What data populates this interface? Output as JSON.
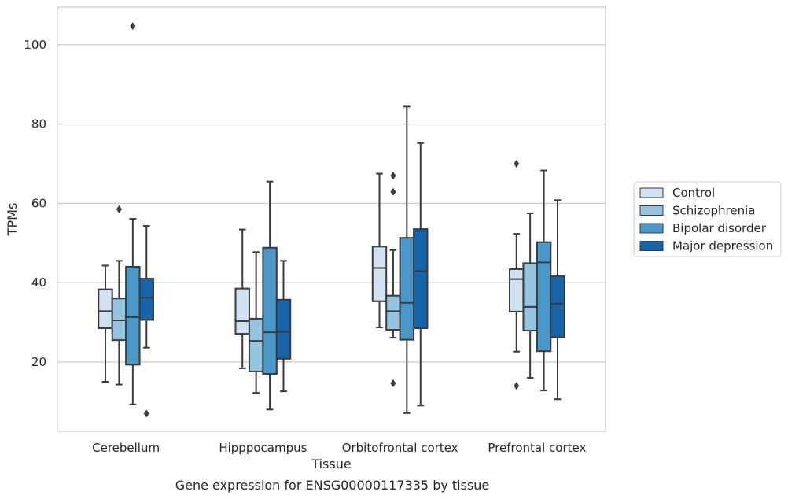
{
  "chart_data": {
    "type": "boxplot",
    "title": "Gene expression for ENSG00000117335 by tissue",
    "xlabel": "Tissue",
    "ylabel": "TPMs",
    "ylim": [
      2.5,
      109.5
    ],
    "yticks": [
      20,
      40,
      60,
      80,
      100
    ],
    "grid": true,
    "legend_position": "outside-right",
    "categories": [
      "Cerebellum",
      "Hipppocampus",
      "Orbitofrontal cortex",
      "Prefrontal cortex"
    ],
    "series": [
      {
        "name": "Control",
        "color": "#d0e1f2",
        "boxes": [
          {
            "whislo": 15.0,
            "q1": 28.5,
            "med": 32.8,
            "q3": 38.3,
            "whishi": 44.3,
            "fliers": []
          },
          {
            "whislo": 18.4,
            "q1": 27.1,
            "med": 30.3,
            "q3": 38.5,
            "whishi": 53.4,
            "fliers": []
          },
          {
            "whislo": 28.7,
            "q1": 35.3,
            "med": 43.7,
            "q3": 49.1,
            "whishi": 67.5,
            "fliers": []
          },
          {
            "whislo": 22.6,
            "q1": 32.7,
            "med": 40.9,
            "q3": 43.4,
            "whishi": 52.3,
            "fliers": [
              14.0,
              70.0
            ]
          }
        ]
      },
      {
        "name": "Schizophrenia",
        "color": "#94c4df",
        "boxes": [
          {
            "whislo": 14.3,
            "q1": 25.5,
            "med": 30.5,
            "q3": 36.0,
            "whishi": 45.5,
            "fliers": [
              58.5
            ]
          },
          {
            "whislo": 12.2,
            "q1": 17.6,
            "med": 25.3,
            "q3": 30.9,
            "whishi": 47.7,
            "fliers": []
          },
          {
            "whislo": 26.1,
            "q1": 28.1,
            "med": 32.8,
            "q3": 36.7,
            "whishi": 48.2,
            "fliers": [
              14.6,
              62.9,
              67.0
            ]
          },
          {
            "whislo": 16.0,
            "q1": 27.9,
            "med": 33.9,
            "q3": 44.9,
            "whishi": 57.5,
            "fliers": []
          }
        ]
      },
      {
        "name": "Bipolar disorder",
        "color": "#4a98c9",
        "boxes": [
          {
            "whislo": 9.3,
            "q1": 19.3,
            "med": 31.3,
            "q3": 44.0,
            "whishi": 56.1,
            "fliers": [
              104.7
            ]
          },
          {
            "whislo": 8.0,
            "q1": 17.0,
            "med": 27.5,
            "q3": 48.8,
            "whishi": 65.5,
            "fliers": []
          },
          {
            "whislo": 7.1,
            "q1": 25.6,
            "med": 34.9,
            "q3": 51.3,
            "whishi": 84.4,
            "fliers": []
          },
          {
            "whislo": 12.8,
            "q1": 22.7,
            "med": 45.1,
            "q3": 50.2,
            "whishi": 68.3,
            "fliers": []
          }
        ]
      },
      {
        "name": "Major depression",
        "color": "#1764ab",
        "boxes": [
          {
            "whislo": 23.6,
            "q1": 30.6,
            "med": 36.2,
            "q3": 41.0,
            "whishi": 54.3,
            "fliers": [
              7.0
            ]
          },
          {
            "whislo": 12.6,
            "q1": 20.8,
            "med": 27.6,
            "q3": 35.7,
            "whishi": 45.5,
            "fliers": []
          },
          {
            "whislo": 9.0,
            "q1": 28.5,
            "med": 42.9,
            "q3": 53.5,
            "whishi": 75.2,
            "fliers": []
          },
          {
            "whislo": 10.6,
            "q1": 26.2,
            "med": 34.7,
            "q3": 41.6,
            "whishi": 60.8,
            "fliers": []
          }
        ]
      }
    ]
  }
}
